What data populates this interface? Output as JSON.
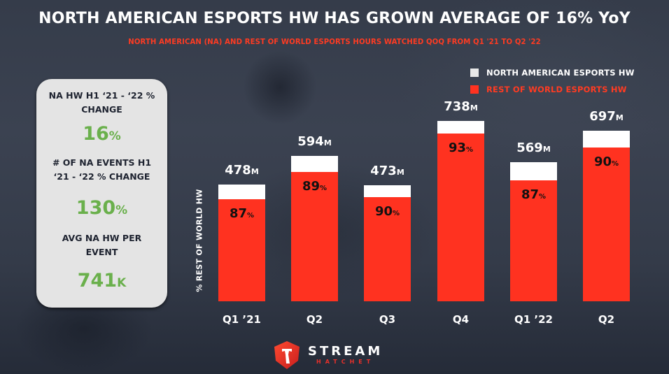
{
  "header": {
    "title": "NORTH AMERICAN ESPORTS HW HAS GROWN AVERAGE OF 16% YoY",
    "subtitle": "NORTH AMERICAN (NA) AND REST OF WORLD ESPORTS HOURS WATCHED QOQ FROM Q1 '21 TO Q2 '22"
  },
  "legend": [
    {
      "label": "NORTH AMERICAN ESPORTS HW",
      "color": "#e8e8e8",
      "text_color": "#ffffff"
    },
    {
      "label": "REST OF WORLD ESPORTS HW",
      "color": "#ff3220",
      "text_color": "#ff3b22"
    }
  ],
  "stats_card": [
    {
      "label_lines": [
        "NA HW H1 ‘21 - ‘22 %",
        "CHANGE"
      ],
      "value": "16",
      "unit": "%"
    },
    {
      "label_lines": [
        "# OF NA EVENTS H1",
        "‘21 - ‘22 % CHANGE"
      ],
      "value": "130",
      "unit": "%"
    },
    {
      "label_lines": [
        "AVG NA HW PER",
        "EVENT"
      ],
      "value": "741",
      "unit": "K"
    }
  ],
  "colors": {
    "na": "#ffffff",
    "row": "#ff3220",
    "stat_value": "#6ab04c"
  },
  "chart_data": {
    "type": "bar",
    "stacked": true,
    "title": "NORTH AMERICAN ESPORTS HW HAS GROWN AVERAGE OF 16% YoY",
    "subtitle": "NORTH AMERICAN (NA) AND REST OF WORLD ESPORTS HOURS WATCHED QOQ FROM Q1 '21 TO Q2 '22",
    "xlabel": "",
    "ylabel": "% REST OF WORLD HW",
    "categories": [
      "Q1 ’21",
      "Q2",
      "Q3",
      "Q4",
      "Q1 ’22",
      "Q2"
    ],
    "totals_millions": [
      478,
      594,
      473,
      738,
      569,
      697
    ],
    "total_unit": "M",
    "rest_of_world_pct": [
      87,
      89,
      90,
      93,
      87,
      90
    ],
    "pct_unit": "%",
    "series": [
      {
        "name": "REST OF WORLD ESPORTS HW",
        "values_pct": [
          87,
          89,
          90,
          93,
          87,
          90
        ]
      },
      {
        "name": "NORTH AMERICAN ESPORTS HW",
        "values_pct": [
          13,
          11,
          10,
          7,
          13,
          10
        ]
      }
    ],
    "ylim": [
      0,
      750
    ],
    "grid": false,
    "legend_position": "top-right"
  },
  "logo": {
    "main": "STREAM",
    "sub": "HATCHET"
  }
}
